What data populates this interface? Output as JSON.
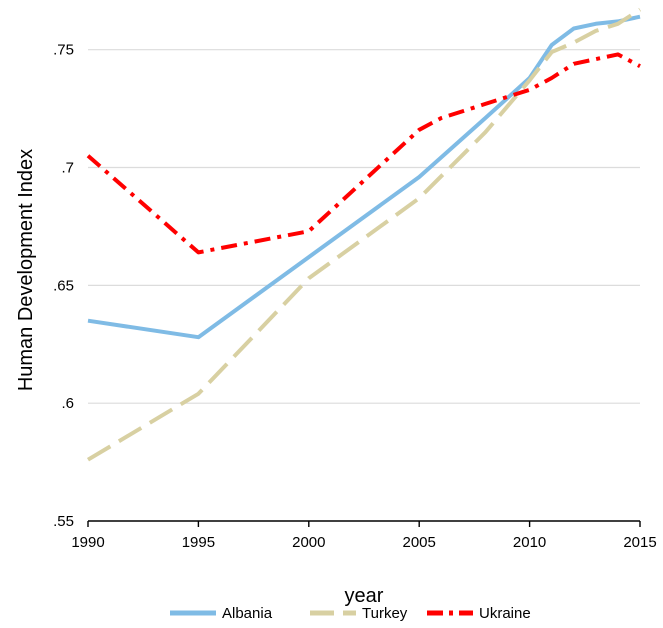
{
  "chart_data": {
    "type": "line",
    "title": "",
    "xlabel": "year",
    "ylabel": "Human Development Index",
    "xlim": [
      1990,
      2015
    ],
    "ylim": [
      0.55,
      0.766
    ],
    "x_ticks": [
      1990,
      1995,
      2000,
      2005,
      2010,
      2015
    ],
    "x_tick_labels": [
      "1990",
      "1995",
      "2000",
      "2005",
      "2010",
      "2015"
    ],
    "y_ticks": [
      0.55,
      0.6,
      0.65,
      0.7,
      0.75
    ],
    "y_tick_labels": [
      ".55",
      ".6",
      ".65",
      ".7",
      ".75"
    ],
    "grid": "horizontal",
    "legend_position": "bottom",
    "series": [
      {
        "name": "Albania",
        "color": "#7fbbe5",
        "style": "solid",
        "x": [
          1990,
          1995,
          2000,
          2005,
          2008,
          2010,
          2011,
          2012,
          2013,
          2014,
          2015
        ],
        "y": [
          0.635,
          0.628,
          0.662,
          0.696,
          0.721,
          0.738,
          0.752,
          0.759,
          0.761,
          0.762,
          0.764
        ]
      },
      {
        "name": "Turkey",
        "color": "#d8d0a2",
        "style": "dashed",
        "x": [
          1990,
          1995,
          2000,
          2005,
          2008,
          2010,
          2011,
          2012,
          2013,
          2014,
          2015
        ],
        "y": [
          0.576,
          0.604,
          0.653,
          0.687,
          0.715,
          0.737,
          0.749,
          0.753,
          0.758,
          0.761,
          0.767
        ]
      },
      {
        "name": "Ukraine",
        "color": "#ff0000",
        "style": "dash-dot",
        "x": [
          1990,
          1995,
          2000,
          2005,
          2006,
          2007,
          2008,
          2009,
          2010,
          2011,
          2012,
          2013,
          2014,
          2015
        ],
        "y": [
          0.705,
          0.664,
          0.673,
          0.716,
          0.721,
          0.724,
          0.727,
          0.73,
          0.733,
          0.738,
          0.744,
          0.746,
          0.748,
          0.743
        ]
      }
    ]
  }
}
